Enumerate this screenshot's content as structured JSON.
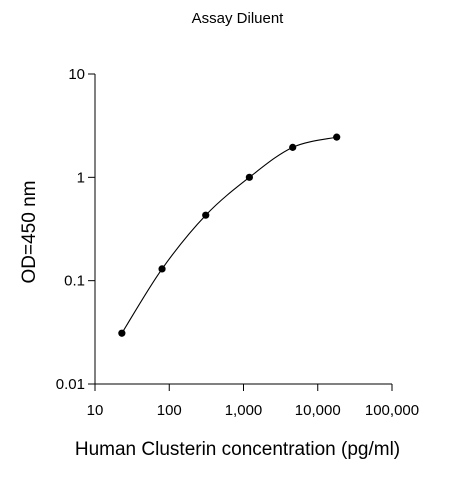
{
  "chart_data": {
    "type": "line",
    "title": "Assay Diluent",
    "xlabel": "Human Clusterin concentration (pg/ml)",
    "ylabel": "OD=450 nm",
    "x_scale": "log",
    "y_scale": "log",
    "xlim": [
      10,
      100000
    ],
    "ylim": [
      0.01,
      10
    ],
    "x_ticks": [
      10,
      100,
      1000,
      10000,
      100000
    ],
    "x_tick_labels": [
      "10",
      "100",
      "1,000",
      "10,000",
      "100,000"
    ],
    "y_ticks": [
      10,
      1,
      0.1,
      0.01
    ],
    "y_tick_labels": [
      "10",
      "1",
      "0.1",
      "0.01"
    ],
    "grid": false,
    "series": [
      {
        "x": [
          23,
          80,
          310,
          1200,
          4600,
          18000
        ],
        "y": [
          0.031,
          0.13,
          0.43,
          1.0,
          1.95,
          2.45
        ]
      }
    ],
    "marker_color": "#000000",
    "line_color": "#000000"
  }
}
